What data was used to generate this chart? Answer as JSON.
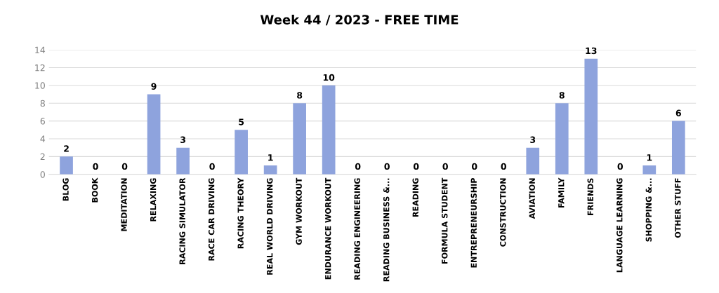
{
  "chart_data": {
    "type": "bar",
    "title": "Week 44 / 2023 - FREE TIME",
    "categories": [
      "BLOG",
      "BOOK",
      "MEDITATION",
      "RELAXING",
      "RACING SIMULATOR",
      "RACE CAR DRIVING",
      "RACING THEORY",
      "REAL WORLD DRIVING",
      "GYM WORKOUT",
      "ENDURANCE WORKOUT",
      "READING ENGINEERING",
      "READING BUSINESS &...",
      "READING",
      "FORMULA STUDENT",
      "ENTREPRENEURSHIP",
      "CONSTRUCTION",
      "AVIATION",
      "FAMILY",
      "FRIENDS",
      "LANGUAGE LEARNING",
      "SHOPPING &...",
      "OTHER STUFF"
    ],
    "values": [
      2,
      0,
      0,
      9,
      3,
      0,
      5,
      1,
      8,
      10,
      0,
      0,
      0,
      0,
      0,
      0,
      3,
      8,
      13,
      0,
      1,
      6
    ],
    "color": "#8ea3dd",
    "ylim": [
      0,
      14
    ],
    "yticks": [
      0,
      2,
      4,
      6,
      8,
      10,
      12,
      14
    ],
    "grid": "y",
    "data_labels": true
  }
}
